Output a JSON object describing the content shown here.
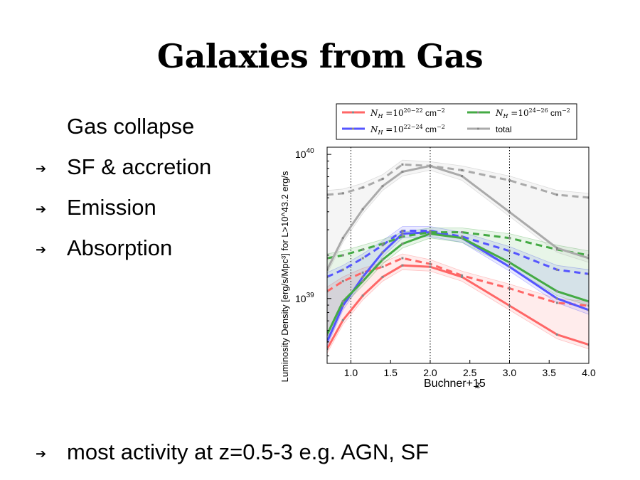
{
  "slide": {
    "title": "Galaxies from Gas",
    "intro": "Gas collapse",
    "bullets": [
      "SF & accretion",
      "Emission",
      "Absorption"
    ],
    "footer_bullet": "most activity at z=0.5-3 e.g. AGN, SF",
    "credit": "Buchner+15"
  },
  "chart_data": {
    "type": "line",
    "xlabel": "z",
    "ylabel": "Luminosity Density [erg/s/Mpc³] for L>10^43.2 erg/s",
    "xlim": [
      0.7,
      4.0
    ],
    "ylim_log10": [
      38.55,
      40.05
    ],
    "y_scale": "log",
    "x_ticks": [
      "1.0",
      "1.5",
      "2.0",
      "2.5",
      "3.0",
      "3.5",
      "4.0"
    ],
    "x_tick_values": [
      1.0,
      1.5,
      2.0,
      2.5,
      3.0,
      3.5,
      4.0
    ],
    "y_ticks": [
      {
        "base": "10",
        "exp": "40",
        "log10": 40
      },
      {
        "base": "10",
        "exp": "39",
        "log10": 39
      }
    ],
    "vlines": [
      1.0,
      2.0,
      3.0
    ],
    "legend_position": "top",
    "series": [
      {
        "name_parts": [
          "N",
          "H",
          " =10",
          "20−22",
          " cm",
          "−2"
        ],
        "color": "#ff6666",
        "x": [
          0.7,
          0.9,
          1.15,
          1.4,
          1.65,
          2.0,
          2.4,
          3.0,
          3.6,
          4.0
        ],
        "y": [
          38.65,
          38.85,
          39.02,
          39.15,
          39.23,
          39.22,
          39.15,
          38.95,
          38.75,
          38.68
        ],
        "dashed_y": [
          39.05,
          39.12,
          39.18,
          39.22,
          39.28,
          39.24,
          39.16,
          39.07,
          38.97,
          38.95
        ]
      },
      {
        "name_parts": [
          "N",
          "H",
          " =10",
          "22−24",
          " cm",
          "−2"
        ],
        "color": "#5555ff",
        "x": [
          0.7,
          0.9,
          1.15,
          1.4,
          1.65,
          2.0,
          2.4,
          3.0,
          3.6,
          4.0
        ],
        "y": [
          38.7,
          38.95,
          39.15,
          39.32,
          39.45,
          39.46,
          39.42,
          39.22,
          39.0,
          38.92
        ],
        "dashed_y": [
          39.15,
          39.2,
          39.28,
          39.37,
          39.47,
          39.47,
          39.43,
          39.33,
          39.2,
          39.17
        ]
      },
      {
        "name_parts": [
          "N",
          "H",
          " =10",
          "24−26",
          " cm",
          "−2"
        ],
        "color": "#44aa44",
        "x": [
          0.7,
          0.9,
          1.15,
          1.4,
          1.65,
          2.0,
          2.4,
          3.0,
          3.6,
          4.0
        ],
        "y": [
          38.75,
          38.98,
          39.12,
          39.27,
          39.38,
          39.45,
          39.42,
          39.25,
          39.05,
          38.98
        ],
        "dashed_y": [
          39.28,
          39.3,
          39.34,
          39.38,
          39.43,
          39.46,
          39.46,
          39.42,
          39.34,
          39.3
        ]
      },
      {
        "name_parts": [
          "total"
        ],
        "color": "#aaaaaa",
        "x": [
          0.7,
          0.9,
          1.15,
          1.4,
          1.65,
          2.0,
          2.4,
          3.0,
          3.6,
          4.0
        ],
        "y": [
          39.2,
          39.42,
          39.62,
          39.78,
          39.88,
          39.92,
          39.85,
          39.6,
          39.35,
          39.28
        ],
        "dashed_y": [
          39.72,
          39.73,
          39.77,
          39.83,
          39.93,
          39.92,
          39.89,
          39.82,
          39.72,
          39.7
        ]
      }
    ]
  }
}
